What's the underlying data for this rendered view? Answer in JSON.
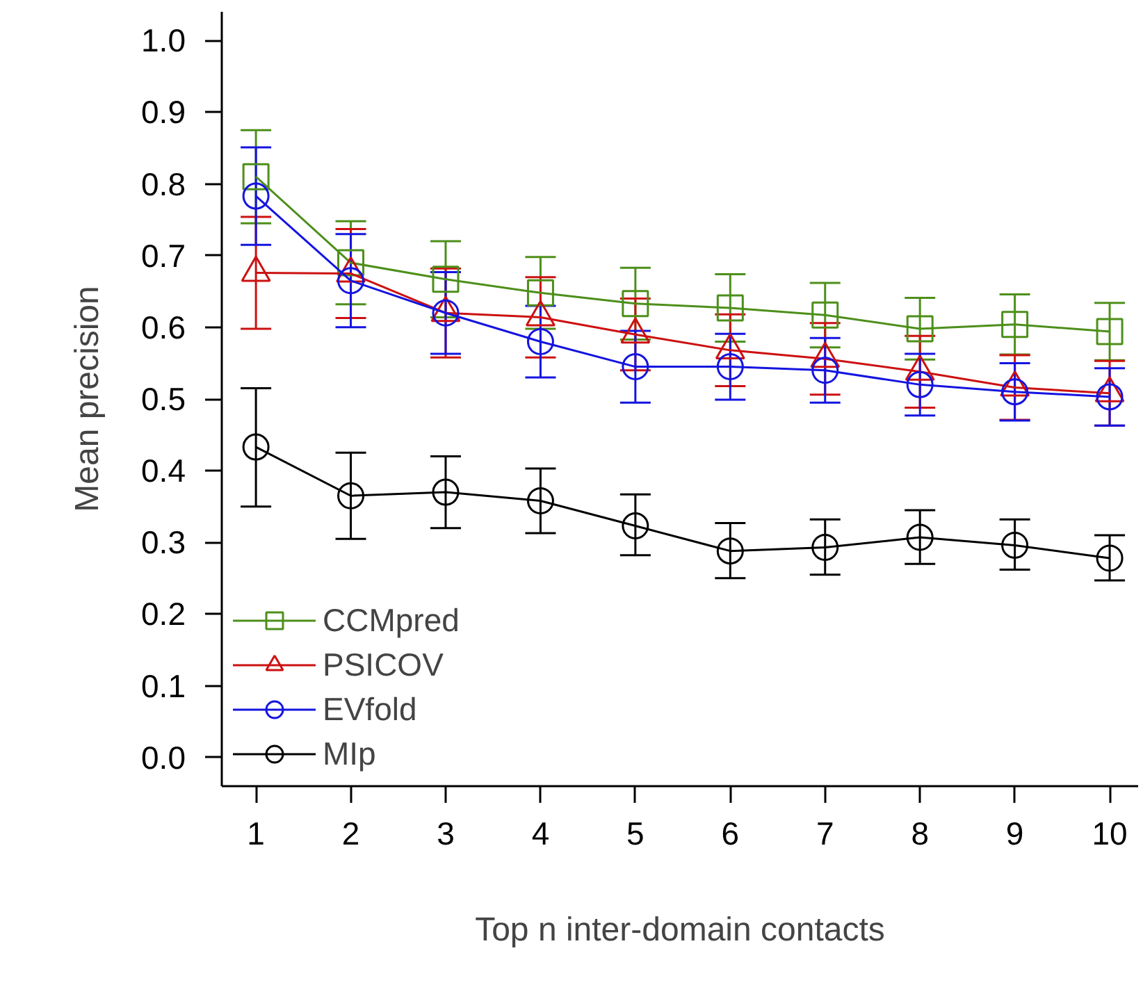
{
  "chart_data": {
    "type": "line",
    "xlabel": "Top n inter-domain contacts",
    "ylabel": "Mean precision",
    "x": [
      1,
      2,
      3,
      4,
      5,
      6,
      7,
      8,
      9,
      10
    ],
    "xlim": [
      0.64,
      10.3
    ],
    "xticks": [
      1,
      2,
      3,
      4,
      5,
      6,
      7,
      8,
      9,
      10
    ],
    "ylim": [
      -0.04,
      1.04
    ],
    "yticks": [
      {
        "value": 0,
        "label": "0.0"
      },
      0.1,
      0.2,
      0.3,
      0.4,
      0.5,
      0.6,
      0.7,
      0.8,
      0.9,
      {
        "value": 1,
        "label": "1.0"
      }
    ],
    "grid": false,
    "legend": "bottom left",
    "line_style": "solid",
    "series": [
      {
        "name": "CCMpred",
        "color": "#4d8f1a",
        "marker": "square",
        "values": [
          0.81,
          0.69,
          0.667,
          0.648,
          0.633,
          0.627,
          0.617,
          0.598,
          0.604,
          0.594
        ],
        "errors": [
          0.065,
          0.058,
          0.053,
          0.05,
          0.05,
          0.047,
          0.045,
          0.043,
          0.042,
          0.04
        ]
      },
      {
        "name": "PSICOV",
        "color": "#cc1111",
        "marker": "triangle",
        "values": [
          0.676,
          0.675,
          0.62,
          0.614,
          0.59,
          0.568,
          0.556,
          0.538,
          0.516,
          0.508
        ],
        "errors": [
          0.078,
          0.062,
          0.062,
          0.056,
          0.05,
          0.05,
          0.05,
          0.05,
          0.045,
          0.045
        ]
      },
      {
        "name": "EVfold",
        "color": "#1414e0",
        "marker": "circle",
        "values": [
          0.783,
          0.665,
          0.62,
          0.58,
          0.545,
          0.545,
          0.54,
          0.52,
          0.51,
          0.503
        ],
        "errors": [
          0.068,
          0.065,
          0.057,
          0.05,
          0.05,
          0.046,
          0.045,
          0.043,
          0.04,
          0.04
        ]
      },
      {
        "name": "MIp",
        "color": "#000000",
        "marker": "circle",
        "values": [
          0.433,
          0.365,
          0.37,
          0.358,
          0.323,
          0.288,
          0.293,
          0.307,
          0.296,
          0.278
        ],
        "errors": [
          [
            0.35,
            0.515
          ],
          [
            0.305,
            0.425
          ],
          [
            0.32,
            0.42
          ],
          [
            0.313,
            0.403
          ],
          [
            0.282,
            0.367
          ],
          [
            0.25,
            0.327
          ],
          [
            0.255,
            0.332
          ],
          [
            0.27,
            0.345
          ],
          [
            0.262,
            0.332
          ],
          [
            0.247,
            0.31
          ]
        ]
      }
    ]
  }
}
